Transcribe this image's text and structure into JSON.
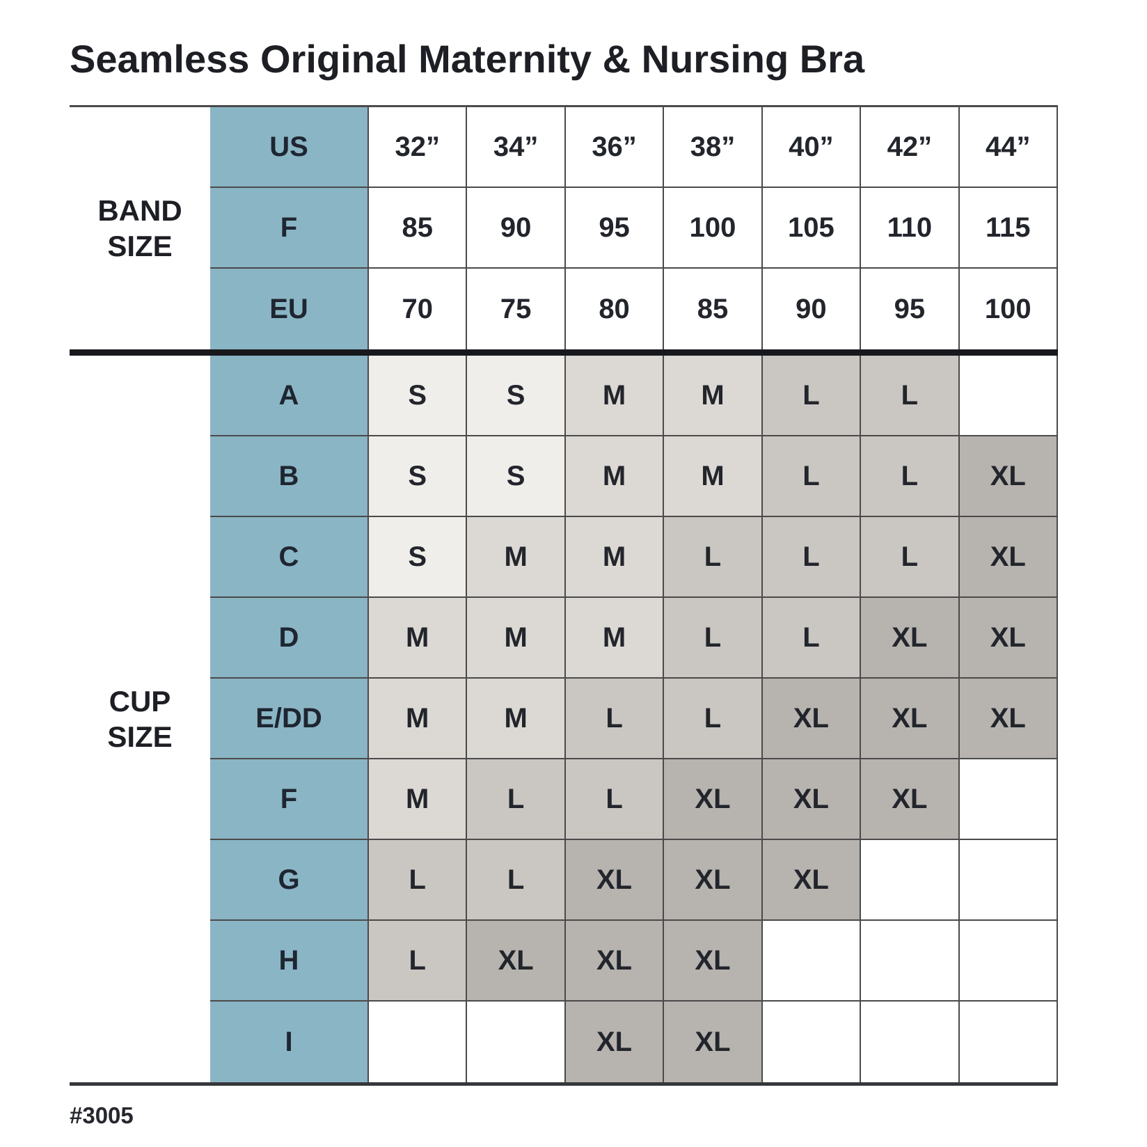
{
  "title": "Seamless Original Maternity & Nursing Bra",
  "footer": {
    "product_code": "#3005"
  },
  "colors": {
    "header_blue": "#8ab5c5",
    "size_s": "#f0eeea",
    "size_m": "#dcd8d3",
    "size_l": "#cac6c1",
    "size_xl": "#b7b3af",
    "empty_cell": "#ffffff",
    "grid_line": "#4a4a4a",
    "section_divider": "#17191d",
    "text": "#22252b"
  },
  "chart_data": {
    "type": "table",
    "title": "Seamless Original Maternity & Nursing Bra",
    "legend_values": [
      "S",
      "M",
      "L",
      "XL"
    ],
    "band_section": {
      "label": "BAND\nSIZE",
      "rows": [
        {
          "label": "US",
          "values": [
            "32”",
            "34”",
            "36”",
            "38”",
            "40”",
            "42”",
            "44”"
          ]
        },
        {
          "label": "F",
          "values": [
            "85",
            "90",
            "95",
            "100",
            "105",
            "110",
            "115"
          ]
        },
        {
          "label": "EU",
          "values": [
            "70",
            "75",
            "80",
            "85",
            "90",
            "95",
            "100"
          ]
        }
      ]
    },
    "cup_section": {
      "label": "CUP\nSIZE",
      "rows": [
        {
          "label": "A",
          "values": [
            "S",
            "S",
            "M",
            "M",
            "L",
            "L",
            ""
          ]
        },
        {
          "label": "B",
          "values": [
            "S",
            "S",
            "M",
            "M",
            "L",
            "L",
            "XL"
          ]
        },
        {
          "label": "C",
          "values": [
            "S",
            "M",
            "M",
            "L",
            "L",
            "L",
            "XL"
          ]
        },
        {
          "label": "D",
          "values": [
            "M",
            "M",
            "M",
            "L",
            "L",
            "XL",
            "XL"
          ]
        },
        {
          "label": "E/DD",
          "values": [
            "M",
            "M",
            "L",
            "L",
            "XL",
            "XL",
            "XL"
          ]
        },
        {
          "label": "F",
          "values": [
            "M",
            "L",
            "L",
            "XL",
            "XL",
            "XL",
            ""
          ]
        },
        {
          "label": "G",
          "values": [
            "L",
            "L",
            "XL",
            "XL",
            "XL",
            "",
            ""
          ]
        },
        {
          "label": "H",
          "values": [
            "L",
            "XL",
            "XL",
            "XL",
            "",
            "",
            ""
          ]
        },
        {
          "label": "I",
          "values": [
            "",
            "",
            "XL",
            "XL",
            "",
            "",
            ""
          ]
        }
      ]
    }
  }
}
